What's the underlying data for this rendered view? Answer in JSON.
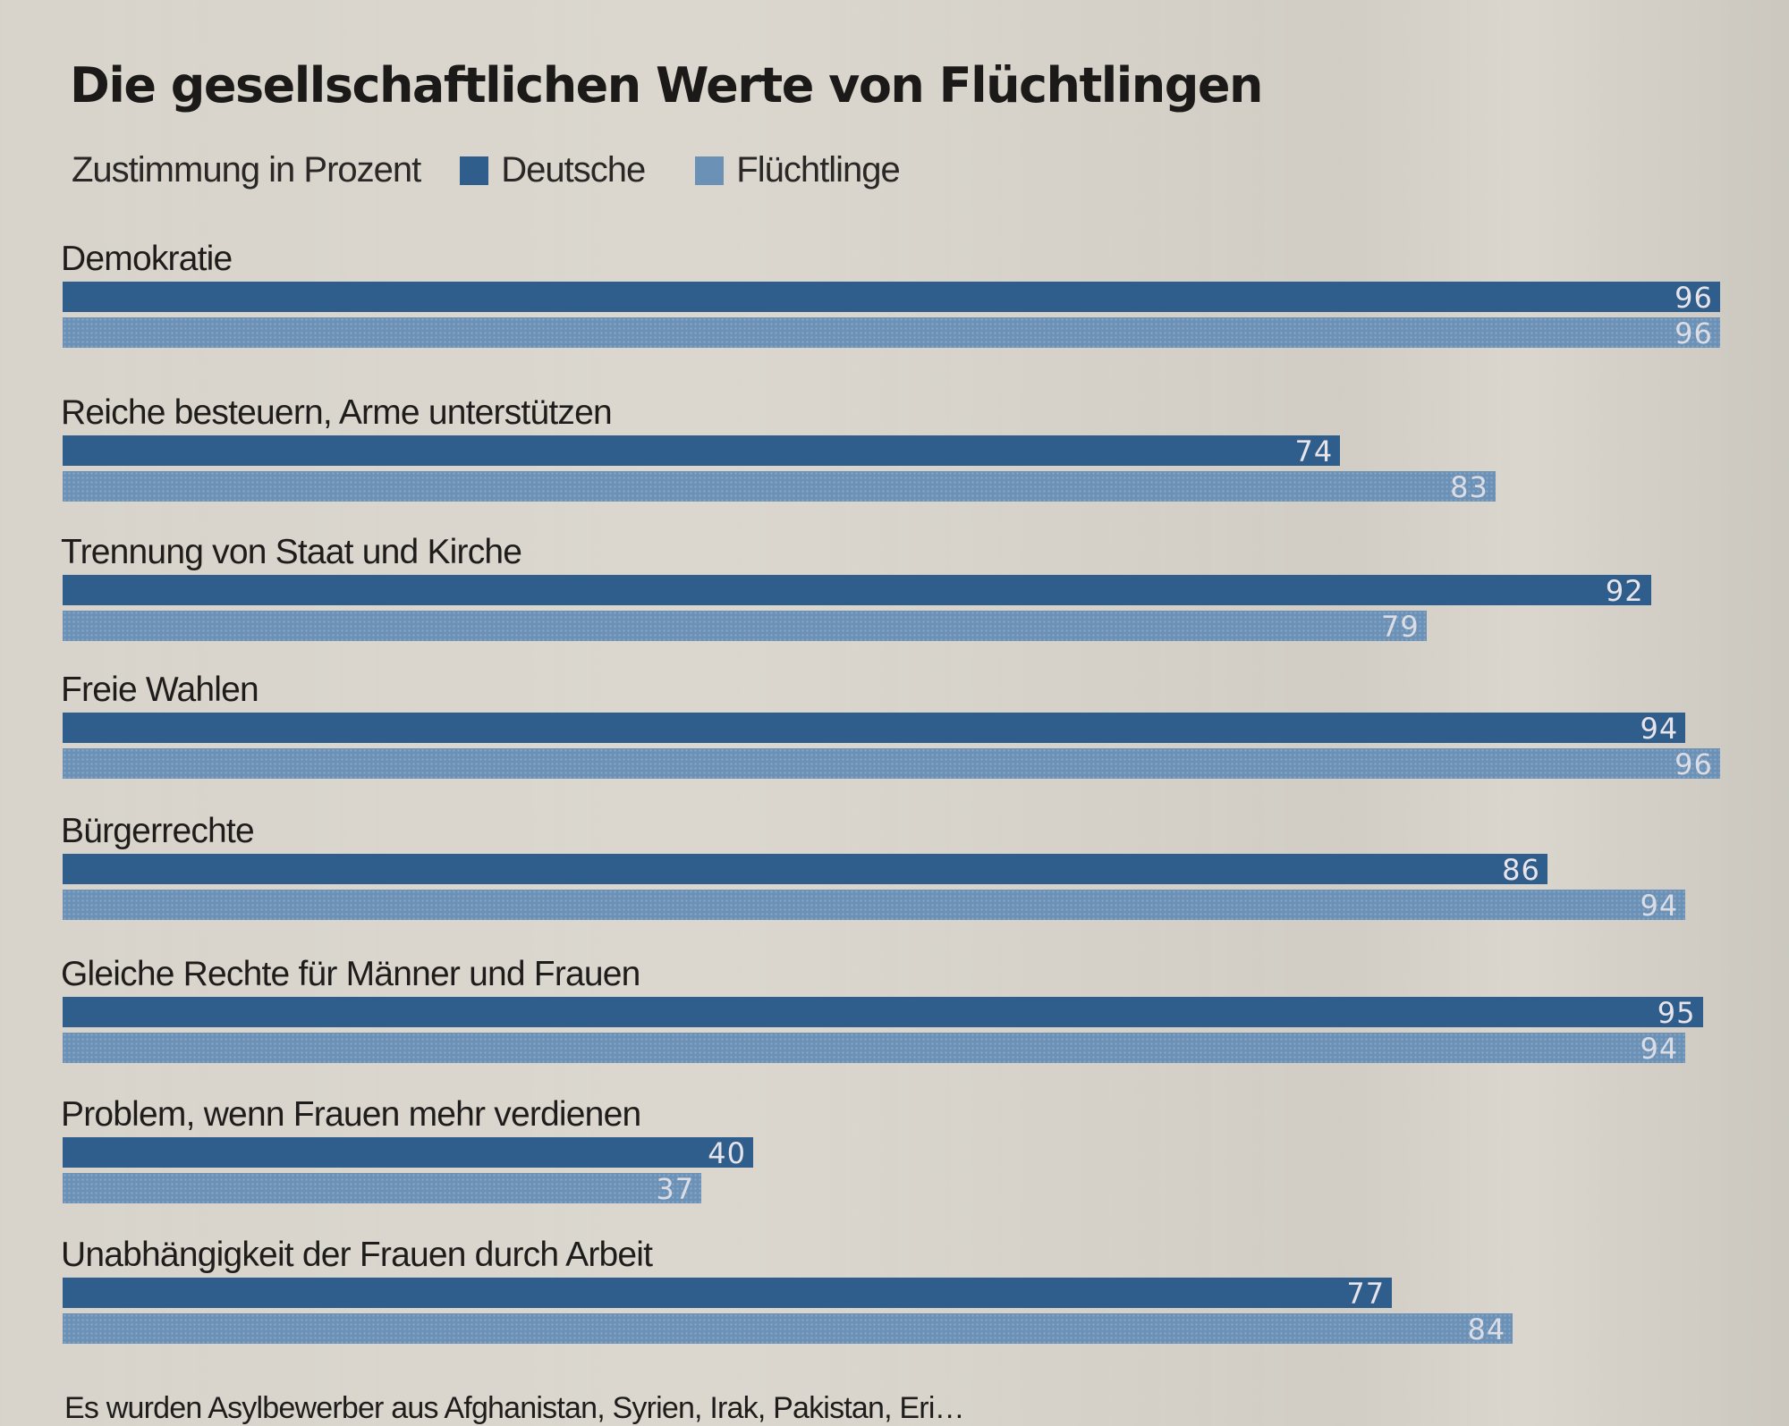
{
  "chart_data": {
    "type": "bar",
    "orientation": "horizontal",
    "title": "Die gesellschaftlichen Werte von Flüchtlingen",
    "subtitle": "Zustimmung in Prozent",
    "xlabel": "",
    "ylabel": "",
    "xlim": [
      0,
      100
    ],
    "grid": false,
    "legend_position": "top-left",
    "categories": [
      "Demokratie",
      "Reiche besteuern, Arme unterstützen",
      "Trennung von Staat und Kirche",
      "Freie Wahlen",
      "Bürgerrechte",
      "Gleiche Rechte für Männer und Frauen",
      "Problem, wenn Frauen mehr verdienen",
      "Unabhängigkeit der Frauen durch Arbeit"
    ],
    "series": [
      {
        "name": "Deutsche",
        "color": "#2f5e8c",
        "values": [
          96,
          74,
          92,
          94,
          86,
          95,
          40,
          77
        ]
      },
      {
        "name": "Flüchtlinge",
        "color": "#6c91b7",
        "values": [
          96,
          83,
          79,
          96,
          94,
          94,
          37,
          84
        ]
      }
    ]
  },
  "legend": {
    "subtitle": "Zustimmung in Prozent",
    "items": [
      {
        "label": "Deutsche",
        "color": "#2f5e8c"
      },
      {
        "label": "Flüchtlinge",
        "color": "#6c91b7"
      }
    ]
  },
  "footer": {
    "note": "Es wurden Asylbewerber aus Afghanistan, Syrien, Irak, Pakistan, Eri…"
  }
}
